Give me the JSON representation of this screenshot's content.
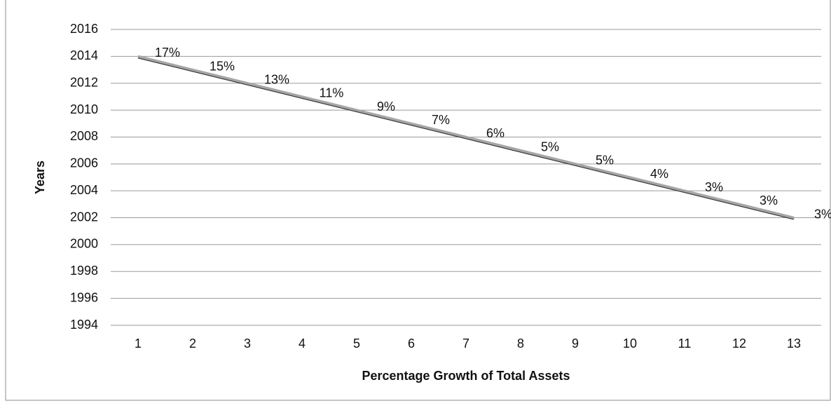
{
  "chart_data": {
    "type": "line",
    "x_label": "Percentage Growth of Total Assets",
    "y_label": "Years",
    "categories": [
      "1",
      "2",
      "3",
      "4",
      "5",
      "6",
      "7",
      "8",
      "9",
      "10",
      "11",
      "12",
      "13"
    ],
    "values": [
      2014,
      2013,
      2012,
      2011,
      2010,
      2009,
      2008,
      2007,
      2006,
      2005,
      2004,
      2003,
      2002
    ],
    "point_labels": [
      "17%",
      "15%",
      "13%",
      "11%",
      "9%",
      "7%",
      "6%",
      "5%",
      "5%",
      "4%",
      "3%",
      "3%",
      "3%"
    ],
    "color": "#a6a6a6",
    "ylim": [
      1994,
      2016
    ],
    "yticks": [
      1994,
      1996,
      1998,
      2000,
      2002,
      2004,
      2006,
      2008,
      2010,
      2012,
      2014,
      2016
    ],
    "grid": true
  }
}
